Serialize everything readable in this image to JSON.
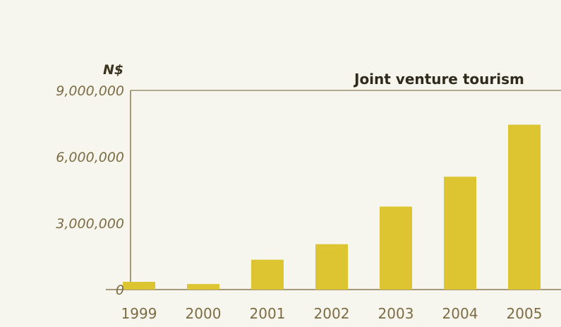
{
  "chart_data": {
    "type": "bar",
    "title": "Joint venture tourism",
    "unit_label": "N$",
    "xlabel": "",
    "ylabel": "",
    "categories": [
      "1999",
      "2000",
      "2001",
      "2002",
      "2003",
      "2004",
      "2005"
    ],
    "values": [
      350000,
      250000,
      1350000,
      2050000,
      3750000,
      5100000,
      7450000
    ],
    "ylim": [
      0,
      9000000
    ],
    "yticks": [
      "0",
      "3,000,000",
      "6,000,000",
      "9,000,000"
    ],
    "ytick_values": [
      0,
      3000000,
      6000000,
      9000000
    ],
    "grid": false,
    "colors": {
      "bar": "#dcc531",
      "axis": "#8a7a52",
      "tick_text": "#7d6c43",
      "background": "#f6f6ee"
    }
  }
}
